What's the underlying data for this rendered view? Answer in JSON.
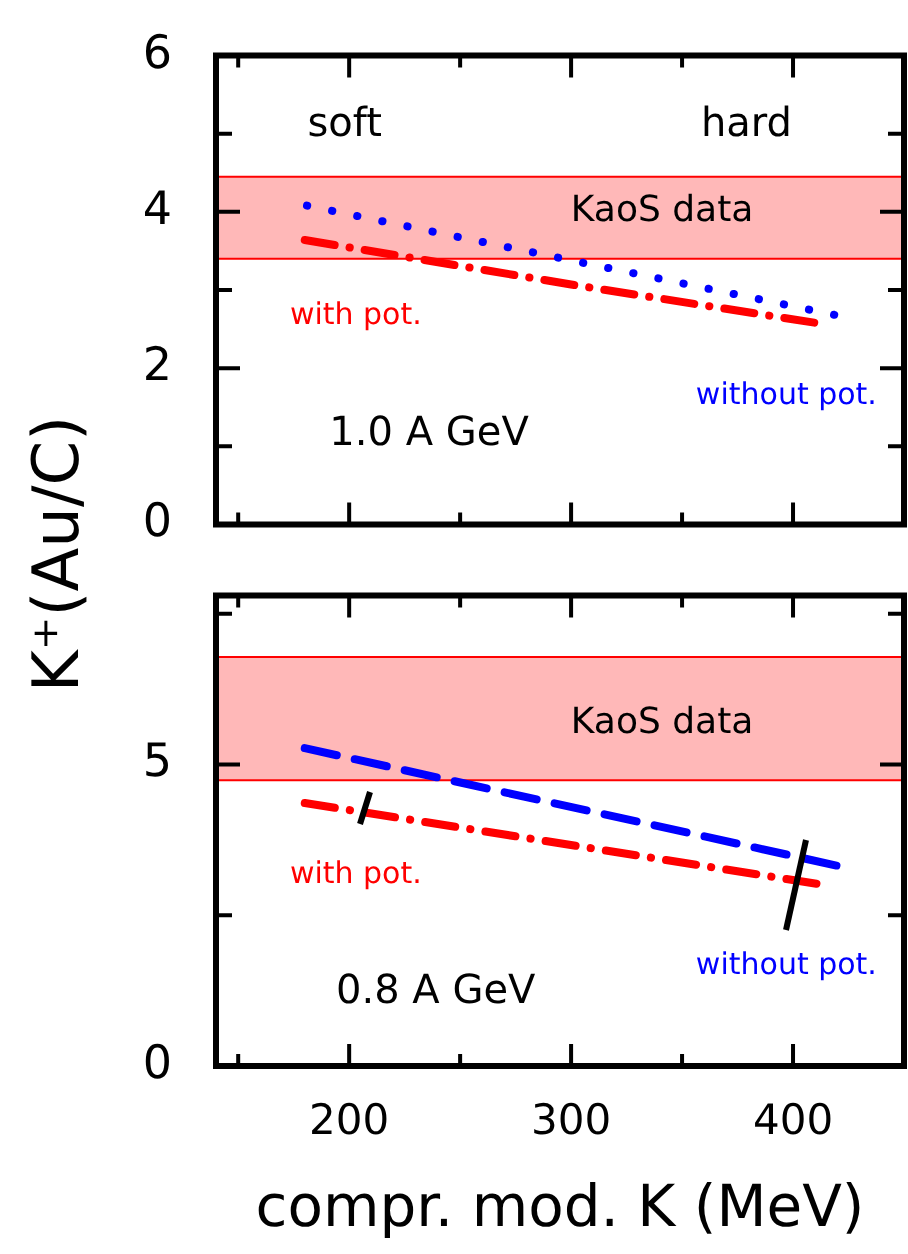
{
  "chart_data": [
    {
      "type": "line",
      "ylabel": "K⁺(Au/C)",
      "xlim": [
        140,
        450
      ],
      "xticks": [
        {
          "value": 150,
          "label": null
        },
        200,
        {
          "value": 250,
          "label": null
        },
        300,
        {
          "value": 350,
          "label": null
        },
        400
      ],
      "ylim": [
        0,
        6
      ],
      "yticks": [
        0,
        {
          "value": 1,
          "label": null
        },
        2,
        {
          "value": 3,
          "label": null
        },
        4,
        {
          "value": 5,
          "label": null
        },
        6
      ],
      "tick_labels": "y",
      "marker": "none",
      "annotations": [
        "soft",
        "hard",
        "1.0 A GeV"
      ],
      "bands": [
        {
          "axis": "y",
          "from": 3.4,
          "to": 4.45,
          "label": "KaoS data",
          "color": "#ff0000"
        }
      ],
      "series": [
        {
          "name": "with pot.",
          "color": "#ff0000",
          "line_style": "dashdot",
          "x": [
            180,
            300,
            410
          ],
          "values": [
            3.64,
            3.07,
            2.58
          ]
        },
        {
          "name": "without pot.",
          "color": "#0000ff",
          "line_style": "dotted",
          "x": [
            181,
            300,
            419
          ],
          "values": [
            4.08,
            3.38,
            2.68
          ]
        }
      ]
    },
    {
      "type": "line",
      "xlabel": "compr. mod. K (MeV)",
      "xlim": [
        140,
        450
      ],
      "xticks": [
        {
          "value": 150,
          "label": null
        },
        200,
        {
          "value": 250,
          "label": null
        },
        300,
        {
          "value": 350,
          "label": null
        },
        400
      ],
      "ylim": [
        0,
        7.8
      ],
      "yticks": [
        0,
        {
          "value": 2.5,
          "label": null
        },
        5,
        {
          "value": 7.5,
          "label": null
        }
      ],
      "marker": "none",
      "annotations": [
        "0.8 A GeV"
      ],
      "bands": [
        {
          "axis": "y",
          "from": 4.74,
          "to": 6.78,
          "label": "KaoS data",
          "color": "#ff0000"
        }
      ],
      "series": [
        {
          "name": "with pot.",
          "color": "#ff0000",
          "line_style": "dashdot",
          "x": [
            180,
            411
          ],
          "values": [
            4.36,
            3.02
          ]
        },
        {
          "name": "without pot.",
          "color": "#0000ff",
          "line_style": "dashed",
          "x": [
            180,
            420
          ],
          "values": [
            5.27,
            3.32
          ]
        }
      ]
    }
  ]
}
